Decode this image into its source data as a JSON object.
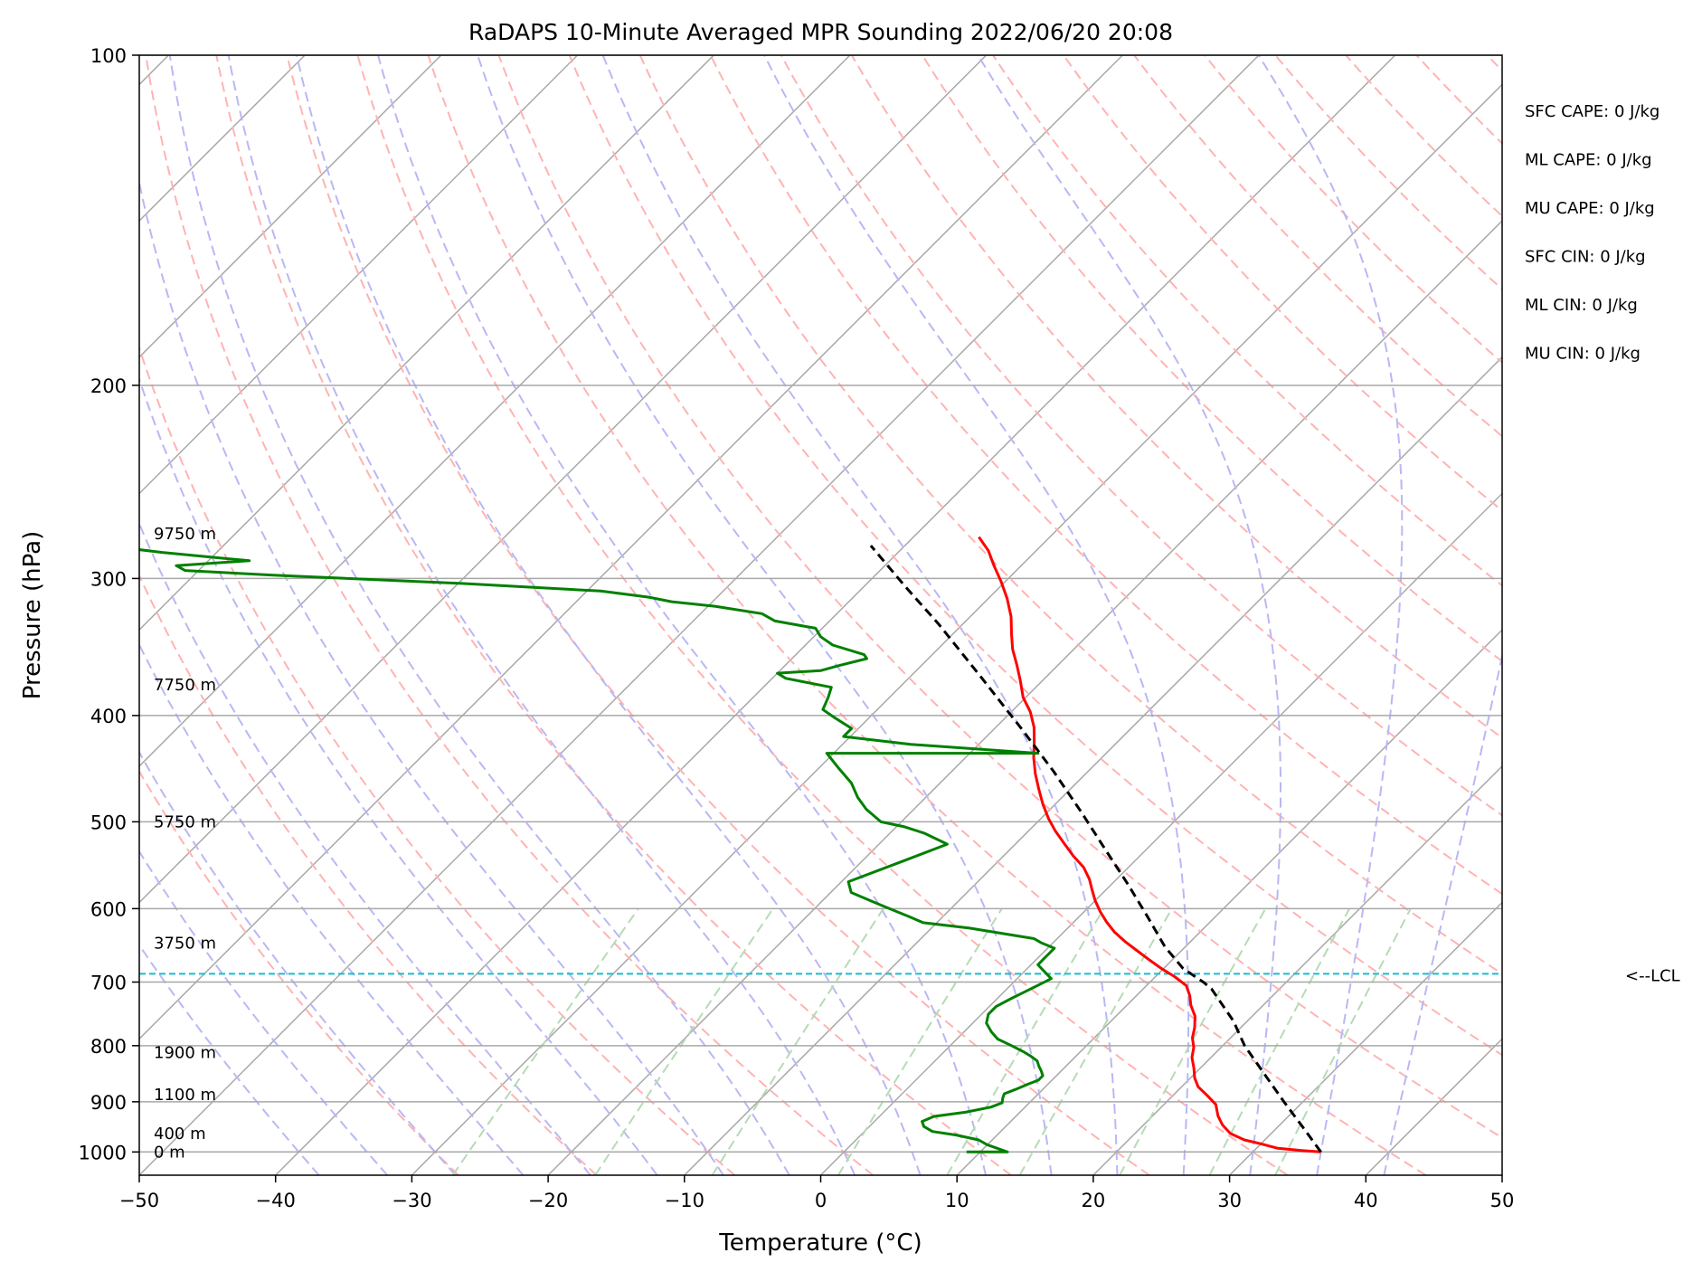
{
  "chart_data": {
    "type": "line",
    "title": "RaDAPS 10-Minute Averaged MPR Sounding 2022/06/20 20:08",
    "xlabel": "Temperature (°C)",
    "ylabel": "Pressure (hPa)",
    "xlim": [
      -50,
      50
    ],
    "ylim": [
      1050,
      100
    ],
    "y_scale": "log",
    "x_ticks": [
      -50,
      -40,
      -30,
      -20,
      -10,
      0,
      10,
      20,
      30,
      40,
      50
    ],
    "x_tick_labels": [
      "−50",
      "−40",
      "−30",
      "−20",
      "−10",
      "0",
      "10",
      "20",
      "30",
      "40",
      "50"
    ],
    "y_ticks": [
      100,
      200,
      300,
      400,
      500,
      600,
      700,
      800,
      900,
      1000
    ],
    "y_tick_labels": [
      "100",
      "200",
      "300",
      "400",
      "500",
      "600",
      "700",
      "800",
      "900",
      "1000"
    ],
    "grid": true,
    "skew": "45°",
    "series": [
      {
        "name": "",
        "color": "#ff0000",
        "points": [
          [
            35.0,
            1000
          ],
          [
            33.5,
            997
          ],
          [
            31.5,
            992
          ],
          [
            30.0,
            983
          ],
          [
            28.5,
            975
          ],
          [
            27.0,
            962
          ],
          [
            25.8,
            945
          ],
          [
            24.8,
            927
          ],
          [
            23.8,
            905
          ],
          [
            22.5,
            888
          ],
          [
            21.2,
            872
          ],
          [
            20.3,
            856
          ],
          [
            19.5,
            838
          ],
          [
            18.6,
            820
          ],
          [
            18.0,
            803
          ],
          [
            17.2,
            787
          ],
          [
            16.6,
            770
          ],
          [
            15.8,
            752
          ],
          [
            14.7,
            735
          ],
          [
            13.9,
            720
          ],
          [
            12.9,
            705
          ],
          [
            11.4,
            692
          ],
          [
            9.8,
            680
          ],
          [
            8.3,
            668
          ],
          [
            6.7,
            655
          ],
          [
            5.2,
            643
          ],
          [
            3.7,
            630
          ],
          [
            2.4,
            617
          ],
          [
            1.2,
            604
          ],
          [
            0.0,
            590
          ],
          [
            -1.0,
            577
          ],
          [
            -2.0,
            564
          ],
          [
            -3.3,
            550
          ],
          [
            -4.9,
            537
          ],
          [
            -6.5,
            523
          ],
          [
            -8.0,
            510
          ],
          [
            -9.4,
            497
          ],
          [
            -10.9,
            482
          ],
          [
            -12.3,
            467
          ],
          [
            -13.7,
            452
          ],
          [
            -15.0,
            437
          ],
          [
            -16.1,
            423
          ],
          [
            -17.2,
            410
          ],
          [
            -18.6,
            397
          ],
          [
            -20.2,
            385
          ],
          [
            -21.6,
            372
          ],
          [
            -23.0,
            360
          ],
          [
            -24.5,
            348
          ],
          [
            -25.7,
            337
          ],
          [
            -27.0,
            325
          ],
          [
            -28.6,
            313
          ],
          [
            -30.3,
            302
          ],
          [
            -32.0,
            292
          ],
          [
            -33.5,
            283
          ],
          [
            -35.2,
            275
          ]
        ]
      },
      {
        "name": "",
        "color": "#008000",
        "points": [
          [
            9.0,
            1000
          ],
          [
            12.0,
            1000
          ],
          [
            10.0,
            985
          ],
          [
            9.0,
            975
          ],
          [
            7.0,
            965
          ],
          [
            5.0,
            958
          ],
          [
            4.0,
            948
          ],
          [
            3.5,
            938
          ],
          [
            4.0,
            928
          ],
          [
            6.0,
            920
          ],
          [
            7.5,
            910
          ],
          [
            8.0,
            902
          ],
          [
            7.7,
            893
          ],
          [
            7.5,
            885
          ],
          [
            8.0,
            877
          ],
          [
            8.5,
            868
          ],
          [
            9.0,
            860
          ],
          [
            9.0,
            852
          ],
          [
            8.5,
            843
          ],
          [
            8.0,
            835
          ],
          [
            7.5,
            826
          ],
          [
            6.7,
            818
          ],
          [
            5.8,
            810
          ],
          [
            4.5,
            800
          ],
          [
            3.0,
            789
          ],
          [
            2.0,
            777
          ],
          [
            1.0,
            763
          ],
          [
            0.5,
            749
          ],
          [
            0.5,
            737
          ],
          [
            1.0,
            725
          ],
          [
            1.5,
            715
          ],
          [
            2.0,
            705
          ],
          [
            2.5,
            695
          ],
          [
            1.5,
            685
          ],
          [
            0.5,
            675
          ],
          [
            0.5,
            667
          ],
          [
            0.5,
            660
          ],
          [
            0.5,
            652
          ],
          [
            -0.8,
            645
          ],
          [
            -1.7,
            639
          ],
          [
            -7.2,
            625
          ],
          [
            -11.0,
            618
          ],
          [
            -12.5,
            610
          ],
          [
            -14.5,
            600
          ],
          [
            -16.5,
            590
          ],
          [
            -18.5,
            580
          ],
          [
            -19.5,
            567
          ],
          [
            -17.0,
            543
          ],
          [
            -15.0,
            524
          ],
          [
            -17.5,
            512
          ],
          [
            -19.5,
            505
          ],
          [
            -21.5,
            500
          ],
          [
            -23.5,
            487
          ],
          [
            -25.0,
            475
          ],
          [
            -26.5,
            461
          ],
          [
            -28.5,
            447
          ],
          [
            -30.5,
            433
          ],
          [
            -15.0,
            433
          ],
          [
            -25.0,
            425
          ],
          [
            -30.5,
            418
          ],
          [
            -30.5,
            411
          ],
          [
            -32.5,
            402
          ],
          [
            -34.0,
            395
          ],
          [
            -34.5,
            385
          ],
          [
            -35.0,
            377
          ],
          [
            -39.0,
            370
          ],
          [
            -40.0,
            366
          ],
          [
            -37.0,
            364
          ],
          [
            -36.0,
            360
          ],
          [
            -34.5,
            355
          ],
          [
            -35.0,
            352
          ],
          [
            -38.0,
            345
          ],
          [
            -39.5,
            339
          ],
          [
            -40.5,
            333
          ],
          [
            -44.0,
            328
          ],
          [
            -45.5,
            323
          ],
          [
            -49.5,
            318
          ],
          [
            -53.0,
            315
          ],
          [
            -55.0,
            312
          ],
          [
            -59.0,
            308
          ],
          [
            -70.0,
            303
          ],
          [
            -84.0,
            298
          ],
          [
            -91.0,
            295
          ],
          [
            -92.0,
            292
          ],
          [
            -87.0,
            289
          ],
          [
            -94.0,
            284
          ],
          [
            -101.0,
            278
          ]
        ]
      },
      {
        "name": "",
        "color": "#000000",
        "dashed": true,
        "points": [
          [
            35.0,
            1000
          ],
          [
            31.9,
            950
          ],
          [
            28.6,
            900
          ],
          [
            25.2,
            850
          ],
          [
            21.6,
            800
          ],
          [
            19.0,
            760
          ],
          [
            15.0,
            710
          ],
          [
            13.9,
            700
          ],
          [
            11.4,
            680
          ],
          [
            8.5,
            650
          ],
          [
            5.0,
            610
          ],
          [
            1.2,
            570
          ],
          [
            -3.0,
            530
          ],
          [
            -7.5,
            490
          ],
          [
            -12.5,
            450
          ],
          [
            -18.2,
            410
          ],
          [
            -24.6,
            370
          ],
          [
            -31.8,
            330
          ],
          [
            -37.0,
            305
          ],
          [
            -42.5,
            280
          ]
        ]
      }
    ],
    "lcl_pressure": 688,
    "lcl_label": "<--LCL",
    "height_labels": [
      {
        "pressure": 1000,
        "text": "0 m"
      },
      {
        "pressure": 962,
        "text": "400 m"
      },
      {
        "pressure": 887,
        "text": "1100 m"
      },
      {
        "pressure": 812,
        "text": "1900 m"
      },
      {
        "pressure": 645,
        "text": "3750 m"
      },
      {
        "pressure": 500,
        "text": "5750 m"
      },
      {
        "pressure": 375,
        "text": "7750 m"
      },
      {
        "pressure": 273,
        "text": "9750 m"
      }
    ],
    "indices": [
      "SFC CAPE: 0 J/kg",
      "ML CAPE: 0 J/kg",
      "MU CAPE: 0 J/kg",
      "SFC CIN: 0 J/kg",
      "ML CIN: 0 J/kg",
      "MU CIN: 0 J/kg"
    ],
    "colors": {
      "isotherm": "#a8a8a8",
      "dry_adiabat": "#ffb3b3",
      "moist_adiabat": "#b8b8f5",
      "mixing_ratio": "#b5dbb5",
      "lcl": "#17becf"
    }
  }
}
